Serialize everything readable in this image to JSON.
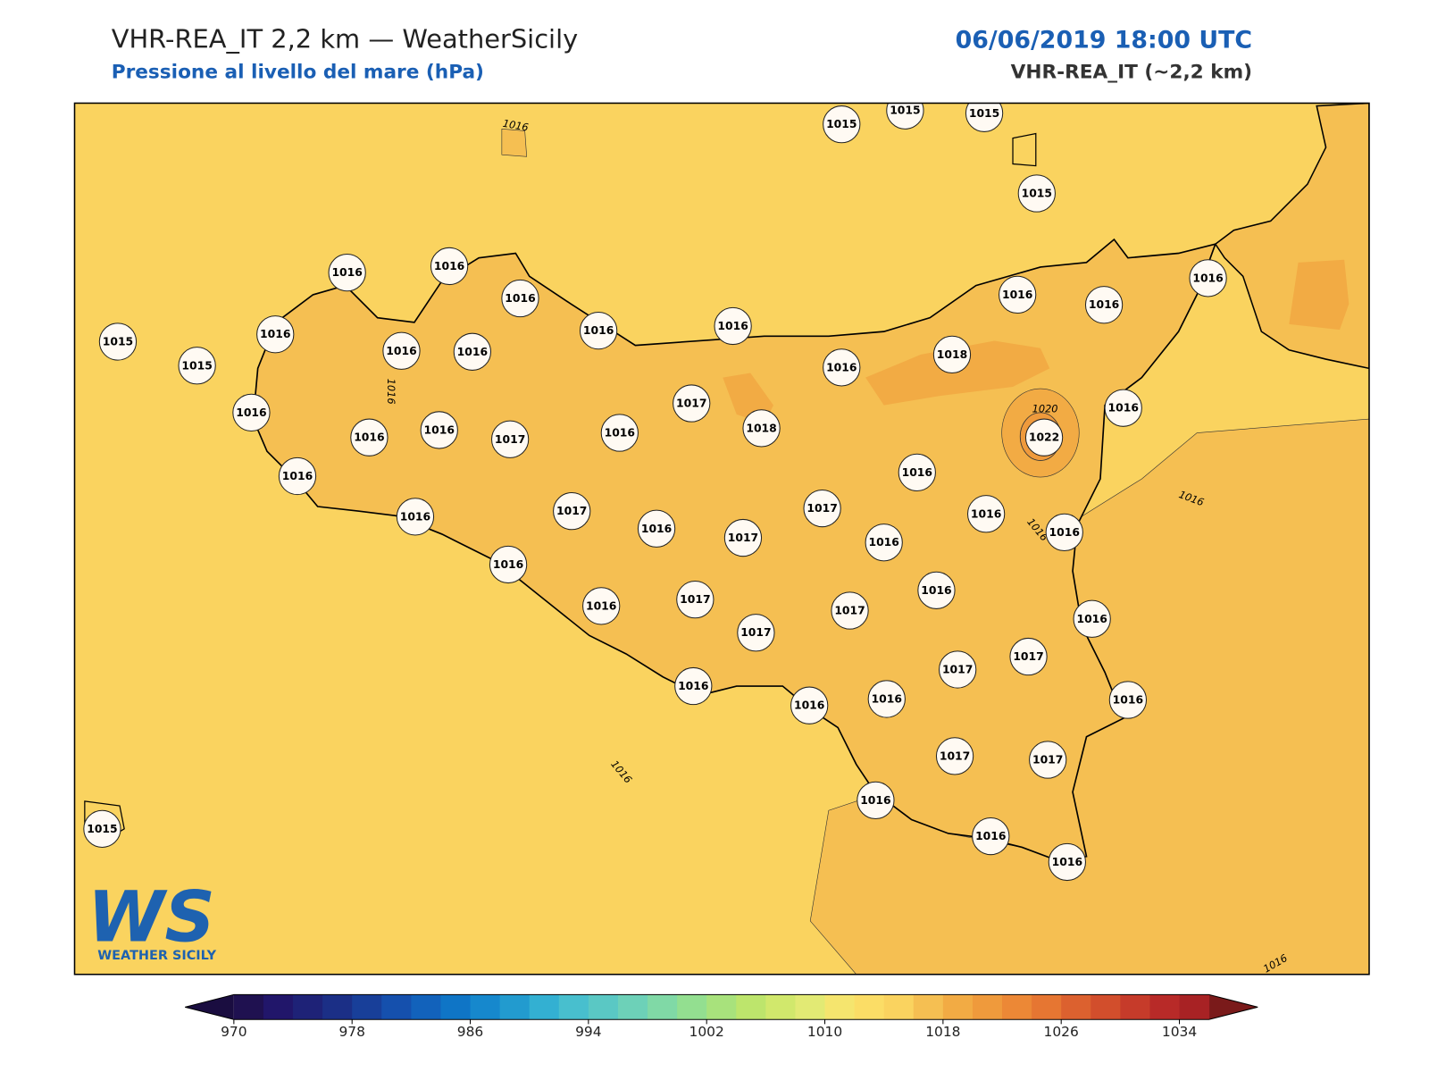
{
  "header": {
    "title": "VHR-REA_IT 2,2 km — WeatherSicily",
    "subtitle": "Pressione al livello del mare (hPa)",
    "datetime": "06/06/2019 18:00 UTC",
    "model": "VHR-REA_IT (~2,2 km)"
  },
  "map": {
    "stations": [
      1015,
      1015,
      1015,
      1015,
      1015,
      1015,
      1015,
      1016,
      1016,
      1016,
      1016,
      1016,
      1016,
      1016,
      1016,
      1016,
      1016,
      1016,
      1016,
      1016,
      1018,
      1017,
      1018,
      1016,
      1022,
      1016,
      1016,
      1017,
      1016,
      1016,
      1016,
      1017,
      1016,
      1016,
      1016,
      1017,
      1016,
      1017,
      1016,
      1016,
      1016,
      1016,
      1017,
      1017,
      1016,
      1017,
      1017,
      1017,
      1016,
      1016,
      1016,
      1016,
      1017,
      1017,
      1016,
      1016,
      1016
    ],
    "contour_labels": [
      1016,
      1016,
      1016,
      1016,
      1016,
      1016,
      1020
    ]
  },
  "logo": {
    "initials": "WS",
    "name": "WEATHER SICILY"
  },
  "colorbar": {
    "lim": [
      970,
      1036
    ],
    "ticks": [
      970,
      978,
      986,
      994,
      1002,
      1010,
      1018,
      1026,
      1034
    ],
    "colors": [
      "#1f1150",
      "#21166a",
      "#1e2277",
      "#1b2f86",
      "#183f99",
      "#1550ad",
      "#1262bb",
      "#0f75c6",
      "#1688cd",
      "#229bcf",
      "#33b0d2",
      "#48bfce",
      "#5ac8c4",
      "#6dd1b8",
      "#80d9a6",
      "#93df90",
      "#a8e27c",
      "#bde56c",
      "#d1e86c",
      "#e2ea74",
      "#f5e56e",
      "#fbdd66",
      "#fad35f",
      "#f5bf52",
      "#f2ab44",
      "#ef9a3c",
      "#ec8836",
      "#e67632",
      "#dc612f",
      "#d24e2c",
      "#c63b2a",
      "#b82a28",
      "#a82224"
    ],
    "under_color": "#1a0d40",
    "over_color": "#7a1a1a"
  }
}
